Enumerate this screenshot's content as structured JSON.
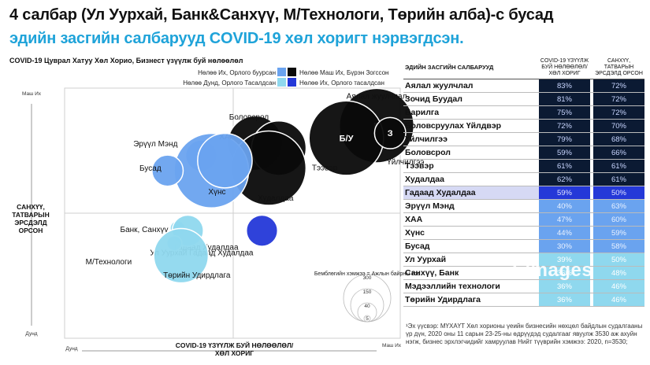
{
  "header": {
    "title_line1": "4 салбар (Ул Уурхай, Банк&Санхүү, М/Технологи, Төрийн алба)-с бусад",
    "title_line2": "эдийн засгийн салбарууд COVID-19 хөл хоригт нэрвэгдсэн."
  },
  "chart_title": "COVID-19 Цуврал Хатуу Хөл Хорио, Бизнест үзүүлж буй нөлөөлөл",
  "axes": {
    "y_label": "САНХҮҮ, ТАТВАРЫН ЭРСДЭЛД ОРСОН",
    "y_top": "Маш Их",
    "y_bottom": "Дунд",
    "x_label": "COVID-19 ҮЗҮҮЛЖ БУЙ НӨЛӨӨЛӨЛ/ ХӨЛ ХОРИГ",
    "x_left": "Дунд",
    "x_right": "Маш Их"
  },
  "legend": {
    "items": [
      {
        "label": "Нөлөө Их, Орлого буурсан",
        "color": "#6aa3ef"
      },
      {
        "label": "Нөлөө Маш Их, Бүрэн Зогссон",
        "color": "#0a0a0a"
      },
      {
        "label": "Нөлөө Дунд, Орлого Тасалдсан",
        "color": "#8fd8ee"
      },
      {
        "label": "Нөлөө Их, Орлого тасалдсан",
        "color": "#2438d8"
      }
    ],
    "size_title": "Бемблөгийн хэмжээ = Ажлын байрны тоо",
    "size_values": [
      "300",
      "150",
      "40",
      "5"
    ]
  },
  "watermark": "Eimages",
  "chart_data": {
    "type": "scatter",
    "title": "COVID-19 Цуврал Хатуу Хөл Хорио, Бизнест үзүүлж буй нөлөөлөл",
    "xlabel": "COVID-19 ҮЗҮҮЛЖ БУЙ НӨЛӨӨЛӨЛ/ ХӨЛ ХОРИГ",
    "ylabel": "САНХҮҮ, ТАТВАРЫН ЭРСДЭЛД ОРСОН",
    "note": "Bubble positions estimated; bubble size = number of jobs",
    "points": [
      {
        "label": "Аялал жуулчлал",
        "x": 0.93,
        "y": 0.85,
        "size": 300,
        "color": "#0a0a0a",
        "inner": "Б"
      },
      {
        "label": "Зочид Буудал",
        "x": 0.84,
        "y": 0.8,
        "size": 300,
        "color": "#0a0a0a",
        "inner": "Б/У"
      },
      {
        "label": "Үйлчилгээ",
        "x": 0.97,
        "y": 0.82,
        "size": 40,
        "color": "#0a0a0a",
        "inner": "З"
      },
      {
        "label": "Боловсрол",
        "x": 0.57,
        "y": 0.78,
        "size": 150,
        "color": "#0a0a0a",
        "inner": ""
      },
      {
        "label": "Тээвэр",
        "x": 0.64,
        "y": 0.76,
        "size": 150,
        "color": "#0a0a0a",
        "inner": ""
      },
      {
        "label": "Худалдаа",
        "x": 0.61,
        "y": 0.68,
        "size": 300,
        "color": "#0a0a0a",
        "inner": ""
      },
      {
        "label": "Гадаад Худалдаа",
        "x": 0.59,
        "y": 0.43,
        "size": 40,
        "color": "#2438d8",
        "inner": ""
      },
      {
        "label": "Эрүүл Мэнд",
        "x": 0.41,
        "y": 0.73,
        "size": 40,
        "color": "#6aa3ef",
        "inner": ""
      },
      {
        "label": "ХАА",
        "x": 0.44,
        "y": 0.67,
        "size": 300,
        "color": "#6aa3ef",
        "inner": ""
      },
      {
        "label": "Бусад",
        "x": 0.31,
        "y": 0.67,
        "size": 40,
        "color": "#6aa3ef",
        "inner": ""
      },
      {
        "label": "Хүнс",
        "x": 0.48,
        "y": 0.71,
        "size": 150,
        "color": "#6aa3ef",
        "inner": ""
      },
      {
        "label": "Банк, Санхүү",
        "x": 0.34,
        "y": 0.44,
        "size": 5,
        "color": "#8fd8ee",
        "inner": ""
      },
      {
        "label": "Ул Уурхай Гадаад Худалдаа",
        "x": 0.37,
        "y": 0.43,
        "size": 40,
        "color": "#8fd8ee",
        "inner": ""
      },
      {
        "label": "М/Технологи",
        "x": 0.33,
        "y": 0.38,
        "size": 5,
        "color": "#8fd8ee",
        "inner": ""
      },
      {
        "label": "Төрийн Удирдлага",
        "x": 0.35,
        "y": 0.33,
        "size": 150,
        "color": "#8fd8ee",
        "inner": ""
      }
    ]
  },
  "table": {
    "col_sector": "ЭДИЙН ЗАСГИЙН САЛБАРУУД",
    "col_covid": "COVID-19 ҮЗҮҮЛЖ БУЙ НӨЛӨӨЛӨЛ/ ХӨЛ ХОРИГ",
    "col_finance": "САНХҮҮ, ТАТВАРЫН ЭРСДЭЛД ОРСОН",
    "rows": [
      {
        "sector": "Аялал жуулчлал",
        "covid": "83%",
        "finance": "72%",
        "cls": "dark"
      },
      {
        "sector": "Зочид Буудал",
        "covid": "81%",
        "finance": "72%",
        "cls": "dark"
      },
      {
        "sector": "Барилга",
        "covid": "75%",
        "finance": "72%",
        "cls": "dark"
      },
      {
        "sector": "Боловсруулах Үйлдвэр",
        "covid": "72%",
        "finance": "70%",
        "cls": "dark"
      },
      {
        "sector": "Үйлчилгээ",
        "covid": "79%",
        "finance": "68%",
        "cls": "dark"
      },
      {
        "sector": "Боловсрол",
        "covid": "59%",
        "finance": "66%",
        "cls": "dark"
      },
      {
        "sector": "Тээвэр",
        "covid": "61%",
        "finance": "61%",
        "cls": "dark"
      },
      {
        "sector": "Худалдаа",
        "covid": "62%",
        "finance": "61%",
        "cls": "dark"
      },
      {
        "sector": "Гадаад Худалдаа",
        "covid": "59%",
        "finance": "50%",
        "cls": "royal"
      },
      {
        "sector": "Эрүүл Мэнд",
        "covid": "40%",
        "finance": "63%",
        "cls": "light"
      },
      {
        "sector": "ХАА",
        "covid": "47%",
        "finance": "60%",
        "cls": "light"
      },
      {
        "sector": "Хүнс",
        "covid": "44%",
        "finance": "59%",
        "cls": "light"
      },
      {
        "sector": "Бусад",
        "covid": "30%",
        "finance": "58%",
        "cls": "light"
      },
      {
        "sector": "Ул Уурхай",
        "covid": "39%",
        "finance": "50%",
        "cls": "pale"
      },
      {
        "sector": "Санхүү, Банк",
        "covid": "36%",
        "finance": "48%",
        "cls": "pale"
      },
      {
        "sector": "Мэдээллийн технологи",
        "covid": "36%",
        "finance": "46%",
        "cls": "pale"
      },
      {
        "sector": "Төрийн Удирдлага",
        "covid": "36%",
        "finance": "46%",
        "cls": "pale"
      }
    ]
  },
  "footnote": "¹Эх үүсвэр: МҮХАҮТ Хөл хорионы үеийн бизнесийн нөхцөл байдлын судалгааны үр дүн, 2020 оны 11 сарын 23-25-ны өдрүүдэд судалгааг явуулж 3530 аж ахуйн нэгж, бизнес эрхлэгчидийг хамруулав Нийт түүврийн хэмжээ: 2020, n=3530;"
}
